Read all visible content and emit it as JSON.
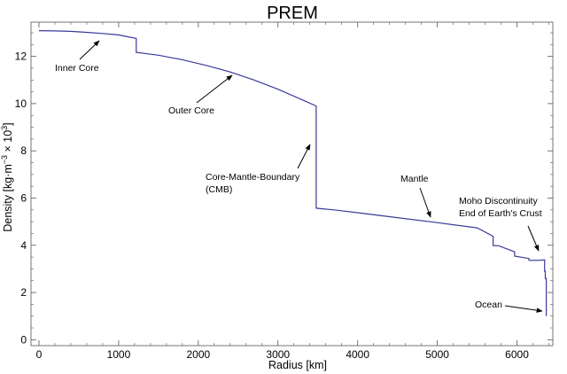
{
  "chart_data": {
    "type": "line",
    "title": "PREM",
    "xlabel": "Radius [km]",
    "ylabel_main": "Density [kg·m",
    "ylabel_exp1": "−3",
    "ylabel_mid": " × 10",
    "ylabel_exp2": "3",
    "ylabel_end": "]",
    "xlim": [
      -100,
      6450
    ],
    "ylim": [
      -0.25,
      13.45
    ],
    "x_ticks": [
      0,
      1000,
      2000,
      3000,
      4000,
      5000,
      6000
    ],
    "x_tick_labels": [
      "0",
      "1000",
      "2000",
      "3000",
      "4000",
      "5000",
      "6000"
    ],
    "y_ticks": [
      0,
      2,
      4,
      6,
      8,
      10,
      12
    ],
    "y_tick_labels": [
      "0",
      "2",
      "4",
      "6",
      "8",
      "10",
      "12"
    ],
    "grid": false,
    "line_color": "#3a3a9a",
    "series": [
      {
        "x": [
          0,
          200,
          400,
          600,
          800,
          1000,
          1221.5,
          1221.5,
          1500,
          1800,
          2100,
          2400,
          2700,
          3000,
          3300,
          3480,
          3480,
          3700,
          4000,
          4500,
          5000,
          5500,
          5701,
          5701,
          5771,
          5971,
          5971,
          6151,
          6151,
          6291,
          6346.6,
          6346.6,
          6356,
          6356,
          6368,
          6368,
          6371
        ],
        "y": [
          13.09,
          13.08,
          13.06,
          13.02,
          12.97,
          12.91,
          12.76,
          12.17,
          12.05,
          11.86,
          11.62,
          11.34,
          11.0,
          10.61,
          10.17,
          9.9,
          5.57,
          5.5,
          5.38,
          5.17,
          4.96,
          4.74,
          4.38,
          3.99,
          3.98,
          3.72,
          3.54,
          3.44,
          3.36,
          3.37,
          3.38,
          2.9,
          2.9,
          2.6,
          2.6,
          1.02,
          1.02
        ]
      }
    ],
    "annotations": [
      {
        "lines": [
          "Inner Core"
        ],
        "point": [
          700,
          13.0
        ]
      },
      {
        "lines": [
          "Outer Core"
        ],
        "point": [
          2400,
          11.5
        ]
      },
      {
        "lines": [
          "Core-Mantle-Boundary",
          "(CMB)"
        ],
        "point": [
          3480,
          8.1
        ]
      },
      {
        "lines": [
          "Mantle"
        ],
        "point": [
          5000,
          5.0
        ]
      },
      {
        "lines": [
          "Moho Discontinuity",
          "End of Earth's Crust"
        ],
        "point": [
          6340,
          3.4
        ]
      },
      {
        "lines": [
          "Ocean"
        ],
        "point": [
          6368,
          1.0
        ]
      }
    ]
  }
}
